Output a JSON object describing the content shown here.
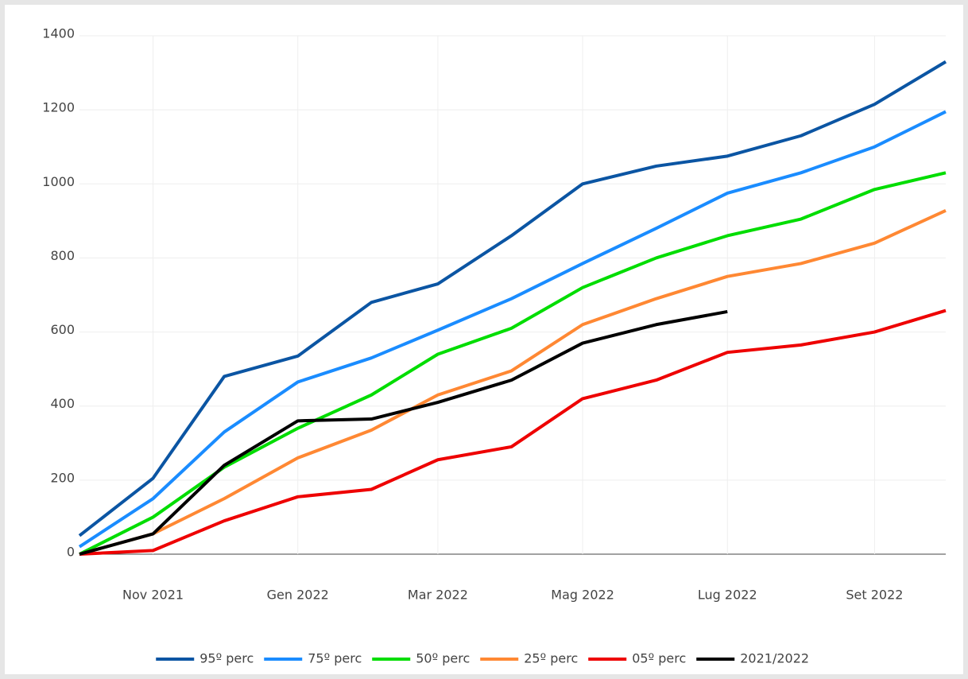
{
  "chart_data": {
    "type": "line",
    "x": [
      "2021-10",
      "2021-11",
      "2021-12",
      "2022-01",
      "2022-02",
      "2022-03",
      "2022-04",
      "2022-05",
      "2022-06",
      "2022-07",
      "2022-08",
      "2022-09",
      "2022-10"
    ],
    "xlim": [
      "2021-10",
      "2022-10"
    ],
    "xticks": [
      {
        "value": "2021-11",
        "label": "Nov 2021"
      },
      {
        "value": "2022-01",
        "label": "Gen 2022"
      },
      {
        "value": "2022-03",
        "label": "Mar 2022"
      },
      {
        "value": "2022-05",
        "label": "Mag 2022"
      },
      {
        "value": "2022-07",
        "label": "Lug 2022"
      },
      {
        "value": "2022-09",
        "label": "Set 2022"
      }
    ],
    "ylim": [
      0,
      1400
    ],
    "yticks": [
      0,
      200,
      400,
      600,
      800,
      1000,
      1200,
      1400
    ],
    "grid": true,
    "legend": "bottom",
    "series": [
      {
        "name": "95º perc",
        "color": "#0b55a3",
        "values": [
          50,
          205,
          480,
          535,
          680,
          730,
          860,
          1000,
          1048,
          1075,
          1130,
          1215,
          1330
        ]
      },
      {
        "name": "75º perc",
        "color": "#1a8cff",
        "values": [
          20,
          150,
          330,
          465,
          530,
          605,
          690,
          785,
          880,
          975,
          1030,
          1100,
          1195
        ]
      },
      {
        "name": "50º perc",
        "color": "#00dd00",
        "values": [
          0,
          100,
          235,
          340,
          430,
          540,
          610,
          720,
          800,
          860,
          905,
          985,
          1030
        ]
      },
      {
        "name": "25º perc",
        "color": "#ff8833",
        "values": [
          0,
          55,
          150,
          260,
          335,
          430,
          495,
          620,
          690,
          750,
          785,
          840,
          928
        ]
      },
      {
        "name": "05º perc",
        "color": "#ee0000",
        "values": [
          0,
          10,
          90,
          155,
          175,
          255,
          290,
          420,
          470,
          545,
          565,
          600,
          658
        ]
      },
      {
        "name": "2021/2022",
        "color": "#000000",
        "values": [
          0,
          55,
          240,
          360,
          365,
          410,
          470,
          570,
          620,
          655,
          null,
          null,
          null
        ]
      }
    ]
  }
}
